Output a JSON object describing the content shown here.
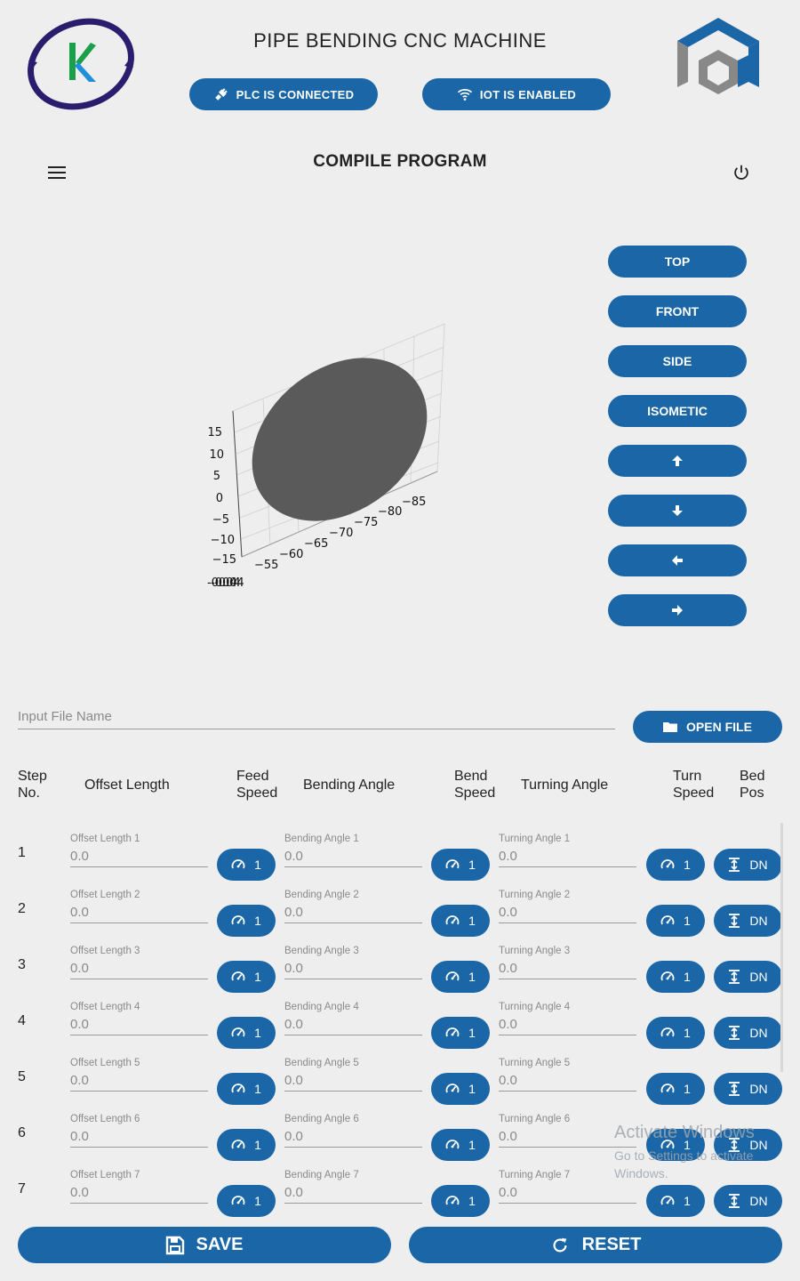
{
  "header": {
    "title": "PIPE BENDING CNC MACHINE",
    "plc_status": "PLC IS CONNECTED",
    "iot_status": "IOT IS ENABLED",
    "accent": "#1a66a6"
  },
  "toolbar": {
    "title": "COMPILE PROGRAM",
    "menu_icon": "menu-icon",
    "power_icon": "power-icon"
  },
  "plot": {
    "z_ticks": [
      "15",
      "10",
      "5",
      "0",
      "−5",
      "−10",
      "−15"
    ],
    "x_ticks": [
      "−55",
      "−60",
      "−65",
      "−70",
      "−75",
      "−80",
      "−85"
    ],
    "y_tick_overlap": "-0.04",
    "surface_color": "#5a5a5a"
  },
  "view_buttons": {
    "top": "TOP",
    "front": "FRONT",
    "side": "SIDE",
    "isometric": "ISOMETIC",
    "up_icon": "arrow-up-icon",
    "down_icon": "arrow-down-icon",
    "left_icon": "arrow-left-icon",
    "right_icon": "arrow-right-icon"
  },
  "file": {
    "placeholder": "Input File Name",
    "open_label": "OPEN FILE"
  },
  "table": {
    "headers": {
      "step_a": "Step",
      "step_b": "No.",
      "offset": "Offset Length",
      "feed_a": "Feed",
      "feed_b": "Speed",
      "bending": "Bending Angle",
      "bend_a": "Bend",
      "bend_b": "Speed",
      "turning": "Turning Angle",
      "turn_a": "Turn",
      "turn_b": "Speed",
      "bed_a": "Bed",
      "bed_b": "Pos"
    },
    "rows": [
      {
        "step": "1",
        "offset_label": "Offset Length 1",
        "offset": "0.0",
        "feed": "1",
        "bend_label": "Bending Angle 1",
        "bend": "0.0",
        "bend_speed": "1",
        "turn_label": "Turning Angle 1",
        "turn": "0.0",
        "turn_speed": "1",
        "bed": "DN"
      },
      {
        "step": "2",
        "offset_label": "Offset Length 2",
        "offset": "0.0",
        "feed": "1",
        "bend_label": "Bending Angle 2",
        "bend": "0.0",
        "bend_speed": "1",
        "turn_label": "Turning Angle 2",
        "turn": "0.0",
        "turn_speed": "1",
        "bed": "DN"
      },
      {
        "step": "3",
        "offset_label": "Offset Length 3",
        "offset": "0.0",
        "feed": "1",
        "bend_label": "Bending Angle 3",
        "bend": "0.0",
        "bend_speed": "1",
        "turn_label": "Turning Angle 3",
        "turn": "0.0",
        "turn_speed": "1",
        "bed": "DN"
      },
      {
        "step": "4",
        "offset_label": "Offset Length 4",
        "offset": "0.0",
        "feed": "1",
        "bend_label": "Bending Angle 4",
        "bend": "0.0",
        "bend_speed": "1",
        "turn_label": "Turning Angle 4",
        "turn": "0.0",
        "turn_speed": "1",
        "bed": "DN"
      },
      {
        "step": "5",
        "offset_label": "Offset Length 5",
        "offset": "0.0",
        "feed": "1",
        "bend_label": "Bending Angle 5",
        "bend": "0.0",
        "bend_speed": "1",
        "turn_label": "Turning Angle 5",
        "turn": "0.0",
        "turn_speed": "1",
        "bed": "DN"
      },
      {
        "step": "6",
        "offset_label": "Offset Length 6",
        "offset": "0.0",
        "feed": "1",
        "bend_label": "Bending Angle 6",
        "bend": "0.0",
        "bend_speed": "1",
        "turn_label": "Turning Angle 6",
        "turn": "0.0",
        "turn_speed": "1",
        "bed": "DN"
      },
      {
        "step": "7",
        "offset_label": "Offset Length 7",
        "offset": "0.0",
        "feed": "1",
        "bend_label": "Bending Angle 7",
        "bend": "0.0",
        "bend_speed": "1",
        "turn_label": "Turning Angle 7",
        "turn": "0.0",
        "turn_speed": "1",
        "bed": "DN"
      }
    ]
  },
  "watermark": {
    "line1": "Activate Windows",
    "line2": "Go to Settings to activate Windows."
  },
  "actions": {
    "save": "SAVE",
    "reset": "RESET"
  }
}
